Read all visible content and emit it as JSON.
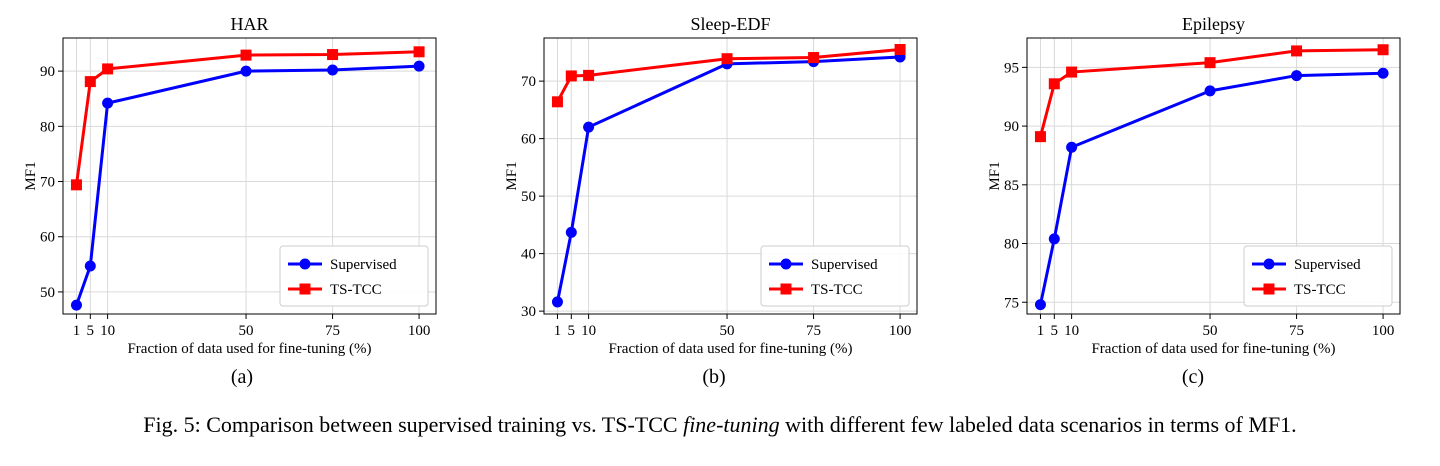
{
  "chart_data": [
    {
      "type": "line",
      "title": "HAR",
      "xlabel": "Fraction of data used for fine-tuning (%)",
      "ylabel": "MF1",
      "x": [
        1,
        5,
        10,
        50,
        75,
        100
      ],
      "xticks": [
        "1",
        "5",
        "10",
        "50",
        "75",
        "100"
      ],
      "yticks": [
        50,
        60,
        70,
        80,
        90
      ],
      "ylim": [
        46,
        96
      ],
      "grid": true,
      "legend_position": "lower-right",
      "series": [
        {
          "name": "Supervised",
          "color": "#0000ff",
          "marker": "circle",
          "values": [
            47.6,
            54.7,
            84.2,
            90.0,
            90.2,
            90.9
          ]
        },
        {
          "name": "TS-TCC",
          "color": "#ff0000",
          "marker": "square",
          "values": [
            69.4,
            88.1,
            90.4,
            92.9,
            93.0,
            93.5
          ]
        }
      ],
      "subcaption": "(a)"
    },
    {
      "type": "line",
      "title": "Sleep-EDF",
      "xlabel": "Fraction of data used for fine-tuning (%)",
      "ylabel": "MF1",
      "x": [
        1,
        5,
        10,
        50,
        75,
        100
      ],
      "xticks": [
        "1",
        "5",
        "10",
        "50",
        "75",
        "100"
      ],
      "yticks": [
        30,
        40,
        50,
        60,
        70
      ],
      "ylim": [
        29.5,
        77.5
      ],
      "grid": true,
      "legend_position": "lower-right",
      "series": [
        {
          "name": "Supervised",
          "color": "#0000ff",
          "marker": "circle",
          "values": [
            31.6,
            43.7,
            62.0,
            73.0,
            73.4,
            74.2
          ]
        },
        {
          "name": "TS-TCC",
          "color": "#ff0000",
          "marker": "square",
          "values": [
            66.4,
            70.9,
            71.0,
            73.9,
            74.1,
            75.5
          ]
        }
      ],
      "subcaption": "(b)"
    },
    {
      "type": "line",
      "title": "Epilepsy",
      "xlabel": "Fraction of data used for fine-tuning (%)",
      "ylabel": "MF1",
      "x": [
        1,
        5,
        10,
        50,
        75,
        100
      ],
      "xticks": [
        "1",
        "5",
        "10",
        "50",
        "75",
        "100"
      ],
      "yticks": [
        75,
        80,
        85,
        90,
        95
      ],
      "ylim": [
        74,
        97.5
      ],
      "grid": true,
      "legend_position": "lower-right",
      "series": [
        {
          "name": "Supervised",
          "color": "#0000ff",
          "marker": "circle",
          "values": [
            74.8,
            80.4,
            88.2,
            93.0,
            94.3,
            94.5
          ]
        },
        {
          "name": "TS-TCC",
          "color": "#ff0000",
          "marker": "square",
          "values": [
            89.1,
            93.6,
            94.6,
            95.4,
            96.4,
            96.5
          ]
        }
      ],
      "subcaption": "(c)"
    }
  ],
  "caption": {
    "prefix": "Fig. 5: Comparison between supervised training vs. TS-TCC ",
    "emphasis": "fine-tuning",
    "suffix": " with different few labeled data scenarios in terms of MF1."
  }
}
